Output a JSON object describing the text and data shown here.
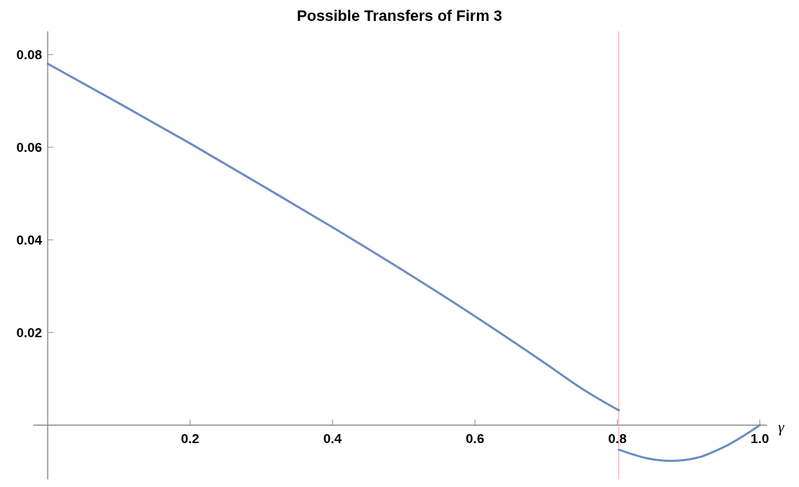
{
  "chart_data": {
    "type": "line",
    "title": "Possible Transfers of Firm 3",
    "xlabel": "γ",
    "series": [
      {
        "color": "#6a8bc3",
        "x": [
          0,
          0.1,
          0.2,
          0.3,
          0.4,
          0.5,
          0.6,
          0.7,
          0.75,
          0.802
        ],
        "values": [
          0.078,
          0.0695,
          0.0608,
          0.0518,
          0.0427,
          0.0333,
          0.0235,
          0.0132,
          0.0079,
          0.0032
        ]
      },
      {
        "color": "#6a8bc3",
        "x": [
          0.802,
          0.84,
          0.875,
          0.91,
          0.95,
          1.0
        ],
        "values": [
          -0.0053,
          -0.0071,
          -0.0077,
          -0.0071,
          -0.0047,
          0
        ]
      }
    ],
    "xlim": [
      -0.02,
      1.01
    ],
    "ylim": [
      -0.0117,
      0.085
    ],
    "xticks": [
      0.2,
      0.4,
      0.6,
      0.8,
      {
        "value": 1,
        "label": "1.0"
      }
    ],
    "yticks": [
      0.02,
      0.04,
      0.06,
      0.08
    ],
    "ref_lines": [
      {
        "axis": "x",
        "value": 0.802,
        "color": "#f4a0a0"
      }
    ],
    "grid": false
  }
}
